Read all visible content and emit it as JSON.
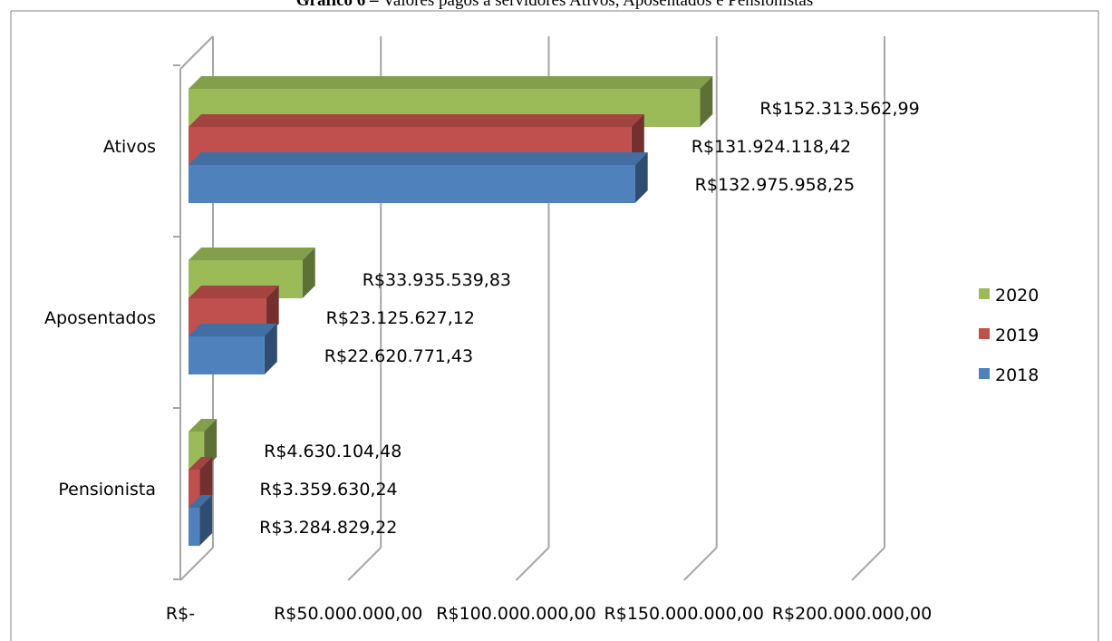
{
  "chart_data": {
    "type": "bar",
    "orientation": "horizontal",
    "style": "3d-clustered",
    "title_bold": "Gráfico 6 –",
    "title": "Valores pagos a servidores Ativos, Aposentados e Pensionistas",
    "categories": [
      "Ativos",
      "Aposentados",
      "Pensionista"
    ],
    "series": [
      {
        "name": "2020",
        "color": "#9BBB59",
        "values": [
          152313562.99,
          33935539.83,
          4630104.48
        ],
        "labels": [
          "R$152.313.562,99",
          "R$33.935.539,83",
          "R$4.630.104,48"
        ]
      },
      {
        "name": "2019",
        "color": "#C0504D",
        "values": [
          131924118.42,
          23125627.12,
          3359630.24
        ],
        "labels": [
          "R$131.924.118,42",
          "R$23.125.627,12",
          "R$3.359.630,24"
        ]
      },
      {
        "name": "2018",
        "color": "#4F81BD",
        "values": [
          132975958.25,
          22620771.43,
          3284829.22
        ],
        "labels": [
          "R$132.975.958,25",
          "R$22.620.771,43",
          "R$3.284.829,22"
        ]
      }
    ],
    "xlim": [
      0,
      200000000
    ],
    "x_ticks": [
      0,
      50000000,
      100000000,
      150000000,
      200000000
    ],
    "x_tick_labels": [
      "R$-",
      "R$50.000.000,00",
      "R$100.000.000,00",
      "R$150.000.000,00",
      "R$200.000.000,00"
    ],
    "grid": true,
    "legend_position": "right",
    "xlabel": "",
    "ylabel": ""
  }
}
